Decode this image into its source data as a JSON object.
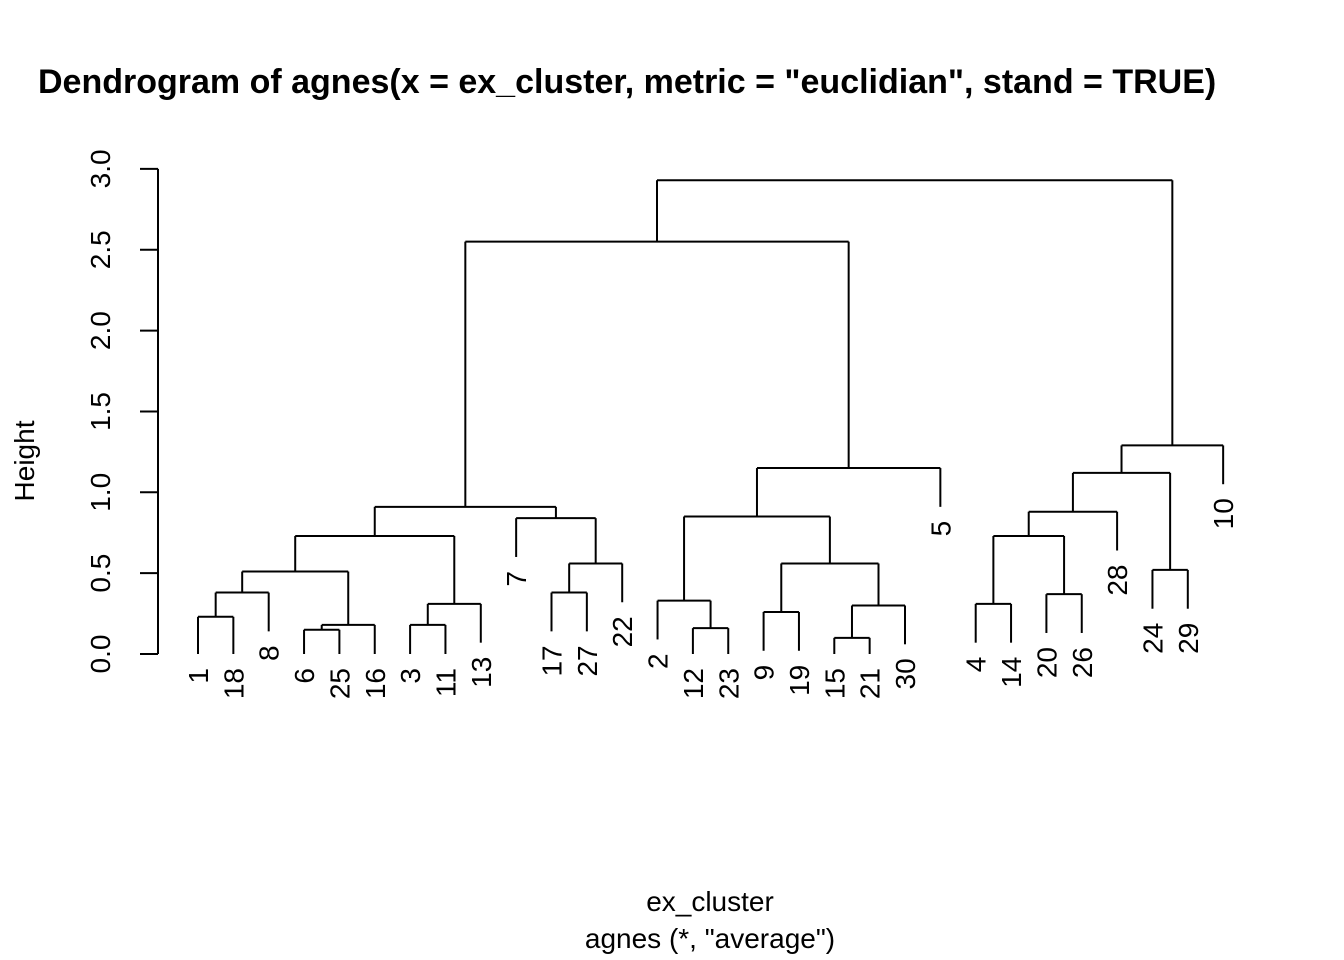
{
  "chart_data": {
    "type": "dendrogram",
    "title": "Dendrogram of  agnes(x = ex_cluster, metric = \"euclidian\", stand = TRUE)",
    "ylabel": "Height",
    "xlabel": "ex_cluster",
    "sublabel": "agnes (*, \"average\")",
    "ylim": [
      0,
      3
    ],
    "yticks": [
      "0.0",
      "0.5",
      "1.0",
      "1.5",
      "2.0",
      "2.5",
      "3.0"
    ],
    "order": [
      "1",
      "18",
      "8",
      "6",
      "25",
      "16",
      "3",
      "11",
      "13",
      "7",
      "17",
      "27",
      "22",
      "2",
      "12",
      "23",
      "9",
      "19",
      "15",
      "21",
      "30",
      "5",
      "4",
      "14",
      "20",
      "26",
      "28",
      "24",
      "29",
      "10"
    ],
    "merges": [
      {
        "ids": [
          "1",
          "18"
        ],
        "height": 0.23
      },
      {
        "ids": [
          "1",
          "18",
          "8"
        ],
        "height": 0.38
      },
      {
        "ids": [
          "6",
          "25"
        ],
        "height": 0.15
      },
      {
        "ids": [
          "6",
          "25",
          "16"
        ],
        "height": 0.18
      },
      {
        "ids": [
          "1",
          "18",
          "8",
          "6",
          "25",
          "16"
        ],
        "height": 0.51
      },
      {
        "ids": [
          "3",
          "11"
        ],
        "height": 0.18
      },
      {
        "ids": [
          "3",
          "11",
          "13"
        ],
        "height": 0.31
      },
      {
        "ids": [
          "1",
          "18",
          "8",
          "6",
          "25",
          "16",
          "3",
          "11",
          "13"
        ],
        "height": 0.73
      },
      {
        "ids": [
          "17",
          "27"
        ],
        "height": 0.38
      },
      {
        "ids": [
          "17",
          "27",
          "22"
        ],
        "height": 0.56
      },
      {
        "ids": [
          "7",
          "17",
          "27",
          "22"
        ],
        "height": 0.84
      },
      {
        "ids": [
          "1",
          "18",
          "8",
          "6",
          "25",
          "16",
          "3",
          "11",
          "13",
          "7",
          "17",
          "27",
          "22"
        ],
        "height": 0.91
      },
      {
        "ids": [
          "12",
          "23"
        ],
        "height": 0.16
      },
      {
        "ids": [
          "2",
          "12",
          "23"
        ],
        "height": 0.33
      },
      {
        "ids": [
          "9",
          "19"
        ],
        "height": 0.26
      },
      {
        "ids": [
          "15",
          "21"
        ],
        "height": 0.1
      },
      {
        "ids": [
          "15",
          "21",
          "30"
        ],
        "height": 0.3
      },
      {
        "ids": [
          "9",
          "19",
          "15",
          "21",
          "30"
        ],
        "height": 0.56
      },
      {
        "ids": [
          "2",
          "12",
          "23",
          "9",
          "19",
          "15",
          "21",
          "30"
        ],
        "height": 0.85
      },
      {
        "ids": [
          "2",
          "12",
          "23",
          "9",
          "19",
          "15",
          "21",
          "30",
          "5"
        ],
        "height": 1.15
      },
      {
        "ids": [
          "1",
          "18",
          "8",
          "6",
          "25",
          "16",
          "3",
          "11",
          "13",
          "7",
          "17",
          "27",
          "22",
          "2",
          "12",
          "23",
          "9",
          "19",
          "15",
          "21",
          "30",
          "5"
        ],
        "height": 2.55
      },
      {
        "ids": [
          "4",
          "14"
        ],
        "height": 0.31
      },
      {
        "ids": [
          "20",
          "26"
        ],
        "height": 0.37
      },
      {
        "ids": [
          "4",
          "14",
          "20",
          "26"
        ],
        "height": 0.73
      },
      {
        "ids": [
          "4",
          "14",
          "20",
          "26",
          "28"
        ],
        "height": 0.88
      },
      {
        "ids": [
          "24",
          "29"
        ],
        "height": 0.52
      },
      {
        "ids": [
          "4",
          "14",
          "20",
          "26",
          "28",
          "24",
          "29"
        ],
        "height": 1.12
      },
      {
        "ids": [
          "4",
          "14",
          "20",
          "26",
          "28",
          "24",
          "29",
          "10"
        ],
        "height": 1.29
      },
      {
        "ids": [
          "1",
          "18",
          "8",
          "6",
          "25",
          "16",
          "3",
          "11",
          "13",
          "7",
          "17",
          "27",
          "22",
          "2",
          "12",
          "23",
          "9",
          "19",
          "15",
          "21",
          "30",
          "5",
          "4",
          "14",
          "20",
          "26",
          "28",
          "24",
          "29",
          "10"
        ],
        "height": 2.93
      }
    ]
  }
}
